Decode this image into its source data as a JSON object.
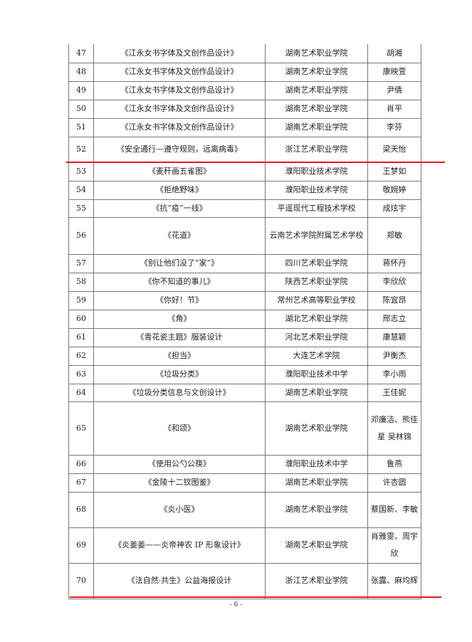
{
  "rows": [
    {
      "no": "47",
      "title": "《江永女书字体及文创作品设计》",
      "school": "湖南艺术职业学院",
      "author": "胡湘"
    },
    {
      "no": "48",
      "title": "《江永女书字体及文创作品设计》",
      "school": "湖南艺术职业学院",
      "author": "康映萱"
    },
    {
      "no": "49",
      "title": "《江永女书字体及文创作品设计》",
      "school": "湖南艺术职业学院",
      "author": "尹倩"
    },
    {
      "no": "50",
      "title": "《江永女书字体及文创作品设计》",
      "school": "湖南艺术职业学院",
      "author": "肖平"
    },
    {
      "no": "51",
      "title": "《江永女书字体及文创作品设计》",
      "school": "湖南艺术职业学院",
      "author": "李芬"
    },
    {
      "no": "52",
      "title": "《安全通行—遵守规则，远离病毒》",
      "school": "浙江艺术职业学院",
      "author": "梁天怡"
    },
    {
      "no": "53",
      "title": "《麦秆画五雀图》",
      "school": "濮阳职业技术学院",
      "author": "王梦如"
    },
    {
      "no": "54",
      "title": "《拒绝野味》",
      "school": "濮阳职业技术学院",
      "author": "敬婉婷"
    },
    {
      "no": "55",
      "title": "《抗“疫”一线》",
      "school": "平遥现代工程技术学校",
      "author": "成炫宇"
    },
    {
      "no": "56",
      "title": "《花道》",
      "school": "云南艺术学院附属艺术学校",
      "author": "郑敏"
    },
    {
      "no": "57",
      "title": "《别让他们没了“家”》",
      "school": "四川艺术职业学院",
      "author": "蒋怀丹"
    },
    {
      "no": "58",
      "title": "《你不知道的事儿》",
      "school": "陕西艺术职业学院",
      "author": "李欣欣"
    },
    {
      "no": "59",
      "title": "《你好！节》",
      "school": "常州艺术高等职业学校",
      "author": "陈宜昂"
    },
    {
      "no": "60",
      "title": "《角》",
      "school": "湖北艺术职业学院",
      "author": "邢志立"
    },
    {
      "no": "61",
      "title": "《青花瓷主题》服装设计",
      "school": "河北艺术职业学院",
      "author": "康慧颖"
    },
    {
      "no": "62",
      "title": "《担当》",
      "school": "大连艺术学院",
      "author": "尹衡杰"
    },
    {
      "no": "63",
      "title": "《垃圾分类》",
      "school": "濮阳职业技术中学",
      "author": "李小雨"
    },
    {
      "no": "64",
      "title": "《垃圾分类信息与文创设计》",
      "school": "湖南艺术职业学院",
      "author": "王佳妮"
    },
    {
      "no": "65",
      "title": "《和颂》",
      "school": "湖南艺术职业学院",
      "author": "邓廉洁、熊佳星 吴林锦"
    },
    {
      "no": "66",
      "title": "《使用公勺公筷》",
      "school": "濮阳职业技术中学",
      "author": "鲁燕"
    },
    {
      "no": "67",
      "title": "《金陵十二钗图鉴》",
      "school": "湖南艺术职业学院",
      "author": "许杏圆"
    },
    {
      "no": "68",
      "title": "《炎小医》",
      "school": "湖南艺术职业学院",
      "author": "蔡国新、李敏"
    },
    {
      "no": "69",
      "title": "《炎姜姜——炎帝神农 IP 形象设计》",
      "school": "湖南艺术职业学院",
      "author": "肖雅雯、周宇欣"
    },
    {
      "no": "70",
      "title": "《法自然·共生》公益海报设计",
      "school": "浙江艺术职业学院",
      "author": "张露、麻均辉"
    }
  ],
  "page_number": "- 6 -",
  "colors": {
    "annotation_line": "#e41b1b",
    "border": "#777777"
  }
}
